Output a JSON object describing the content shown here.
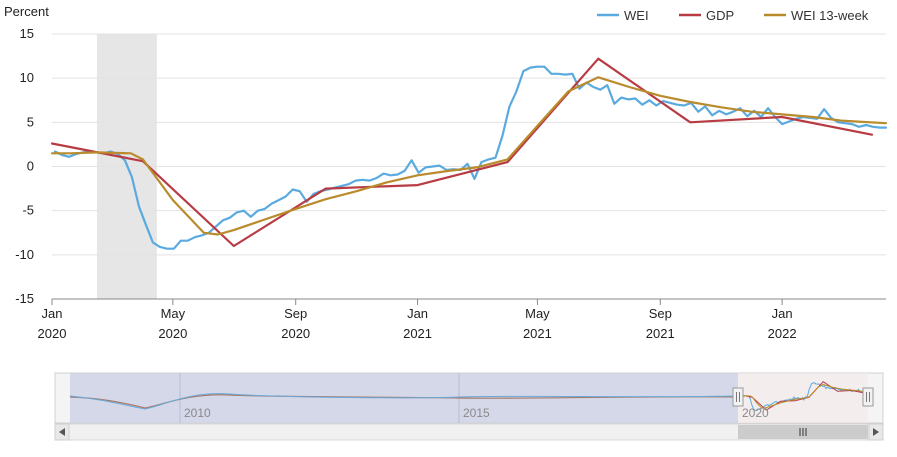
{
  "chart_data": {
    "type": "line",
    "ylabel": "Percent",
    "ylim": [
      -15,
      15
    ],
    "yticks": [
      15,
      10,
      5,
      0,
      -5,
      -10,
      -15
    ],
    "xlim": [
      "2020-01-01",
      "2022-04-15"
    ],
    "xticks": [
      {
        "date": "2020-01-01",
        "month": "Jan",
        "year": "2020"
      },
      {
        "date": "2020-05-01",
        "month": "May",
        "year": "2020"
      },
      {
        "date": "2020-09-01",
        "month": "Sep",
        "year": "2020"
      },
      {
        "date": "2021-01-01",
        "month": "Jan",
        "year": "2021"
      },
      {
        "date": "2021-05-01",
        "month": "May",
        "year": "2021"
      },
      {
        "date": "2021-09-01",
        "month": "Sep",
        "year": "2021"
      },
      {
        "date": "2022-01-01",
        "month": "Jan",
        "year": "2022"
      }
    ],
    "legend_position": "top-right",
    "recession_band": {
      "start": "2020-02-15",
      "end": "2020-04-15"
    },
    "series": [
      {
        "name": "WEI",
        "color": "#5aaae0",
        "points": [
          [
            "2020-01-04",
            1.7
          ],
          [
            "2020-01-11",
            1.3
          ],
          [
            "2020-01-18",
            1.1
          ],
          [
            "2020-01-25",
            1.4
          ],
          [
            "2020-02-01",
            1.6
          ],
          [
            "2020-02-08",
            1.7
          ],
          [
            "2020-02-15",
            1.6
          ],
          [
            "2020-02-22",
            1.5
          ],
          [
            "2020-02-29",
            1.7
          ],
          [
            "2020-03-07",
            1.4
          ],
          [
            "2020-03-14",
            0.7
          ],
          [
            "2020-03-21",
            -1.2
          ],
          [
            "2020-03-28",
            -4.5
          ],
          [
            "2020-04-04",
            -6.6
          ],
          [
            "2020-04-11",
            -8.6
          ],
          [
            "2020-04-18",
            -9.1
          ],
          [
            "2020-04-25",
            -9.3
          ],
          [
            "2020-05-02",
            -9.3
          ],
          [
            "2020-05-09",
            -8.4
          ],
          [
            "2020-05-16",
            -8.4
          ],
          [
            "2020-05-23",
            -8.0
          ],
          [
            "2020-05-30",
            -7.8
          ],
          [
            "2020-06-06",
            -7.5
          ],
          [
            "2020-06-13",
            -6.8
          ],
          [
            "2020-06-20",
            -6.1
          ],
          [
            "2020-06-27",
            -5.8
          ],
          [
            "2020-07-04",
            -5.2
          ],
          [
            "2020-07-11",
            -5.0
          ],
          [
            "2020-07-18",
            -5.7
          ],
          [
            "2020-07-25",
            -5.0
          ],
          [
            "2020-08-01",
            -4.8
          ],
          [
            "2020-08-08",
            -4.2
          ],
          [
            "2020-08-15",
            -3.8
          ],
          [
            "2020-08-22",
            -3.4
          ],
          [
            "2020-08-29",
            -2.6
          ],
          [
            "2020-09-05",
            -2.8
          ],
          [
            "2020-09-12",
            -4.0
          ],
          [
            "2020-09-19",
            -3.1
          ],
          [
            "2020-09-26",
            -2.8
          ],
          [
            "2020-10-03",
            -2.6
          ],
          [
            "2020-10-10",
            -2.4
          ],
          [
            "2020-10-17",
            -2.2
          ],
          [
            "2020-10-24",
            -2.0
          ],
          [
            "2020-10-31",
            -1.6
          ],
          [
            "2020-11-07",
            -1.5
          ],
          [
            "2020-11-14",
            -1.6
          ],
          [
            "2020-11-21",
            -1.3
          ],
          [
            "2020-11-28",
            -0.8
          ],
          [
            "2020-12-05",
            -1.0
          ],
          [
            "2020-12-12",
            -0.9
          ],
          [
            "2020-12-19",
            -0.5
          ],
          [
            "2020-12-26",
            0.7
          ],
          [
            "2021-01-02",
            -0.7
          ],
          [
            "2021-01-09",
            -0.1
          ],
          [
            "2021-01-16",
            0.0
          ],
          [
            "2021-01-23",
            0.1
          ],
          [
            "2021-01-30",
            -0.4
          ],
          [
            "2021-02-06",
            -0.3
          ],
          [
            "2021-02-13",
            -0.4
          ],
          [
            "2021-02-20",
            0.3
          ],
          [
            "2021-02-27",
            -1.4
          ],
          [
            "2021-03-06",
            0.5
          ],
          [
            "2021-03-13",
            0.8
          ],
          [
            "2021-03-20",
            1.0
          ],
          [
            "2021-03-27",
            3.5
          ],
          [
            "2021-04-03",
            6.8
          ],
          [
            "2021-04-10",
            8.5
          ],
          [
            "2021-04-17",
            10.8
          ],
          [
            "2021-04-24",
            11.2
          ],
          [
            "2021-05-01",
            11.3
          ],
          [
            "2021-05-08",
            11.3
          ],
          [
            "2021-05-15",
            10.5
          ],
          [
            "2021-05-22",
            10.5
          ],
          [
            "2021-05-29",
            10.4
          ],
          [
            "2021-06-05",
            10.5
          ],
          [
            "2021-06-12",
            8.8
          ],
          [
            "2021-06-19",
            9.5
          ],
          [
            "2021-06-26",
            9.0
          ],
          [
            "2021-07-03",
            8.7
          ],
          [
            "2021-07-10",
            9.2
          ],
          [
            "2021-07-17",
            7.1
          ],
          [
            "2021-07-24",
            7.8
          ],
          [
            "2021-07-31",
            7.6
          ],
          [
            "2021-08-07",
            7.7
          ],
          [
            "2021-08-14",
            7.0
          ],
          [
            "2021-08-21",
            7.5
          ],
          [
            "2021-08-28",
            6.9
          ],
          [
            "2021-09-04",
            7.4
          ],
          [
            "2021-09-11",
            7.2
          ],
          [
            "2021-09-18",
            7.0
          ],
          [
            "2021-09-25",
            6.9
          ],
          [
            "2021-10-02",
            7.2
          ],
          [
            "2021-10-09",
            6.2
          ],
          [
            "2021-10-16",
            6.8
          ],
          [
            "2021-10-23",
            5.8
          ],
          [
            "2021-10-30",
            6.3
          ],
          [
            "2021-11-06",
            5.9
          ],
          [
            "2021-11-13",
            6.2
          ],
          [
            "2021-11-20",
            6.6
          ],
          [
            "2021-11-27",
            5.7
          ],
          [
            "2021-12-04",
            6.3
          ],
          [
            "2021-12-11",
            5.6
          ],
          [
            "2021-12-18",
            6.6
          ],
          [
            "2021-12-25",
            5.6
          ],
          [
            "2022-01-01",
            4.8
          ],
          [
            "2022-01-08",
            5.1
          ],
          [
            "2022-01-15",
            5.4
          ],
          [
            "2022-01-22",
            5.6
          ],
          [
            "2022-01-29",
            5.5
          ],
          [
            "2022-02-05",
            5.4
          ],
          [
            "2022-02-12",
            6.5
          ],
          [
            "2022-02-19",
            5.5
          ],
          [
            "2022-02-26",
            5.0
          ],
          [
            "2022-03-05",
            4.9
          ],
          [
            "2022-03-12",
            4.8
          ],
          [
            "2022-03-19",
            4.5
          ],
          [
            "2022-03-26",
            4.7
          ],
          [
            "2022-04-02",
            4.5
          ],
          [
            "2022-04-09",
            4.4
          ],
          [
            "2022-04-15",
            4.4
          ]
        ]
      },
      {
        "name": "GDP",
        "color": "#b83b43",
        "points": [
          [
            "2020-01-01",
            2.6
          ],
          [
            "2020-04-01",
            0.6
          ],
          [
            "2020-07-01",
            -9.0
          ],
          [
            "2020-10-01",
            -2.5
          ],
          [
            "2021-01-01",
            -2.1
          ],
          [
            "2021-04-01",
            0.5
          ],
          [
            "2021-07-01",
            12.2
          ],
          [
            "2021-10-01",
            5.0
          ],
          [
            "2022-01-01",
            5.6
          ],
          [
            "2022-04-01",
            3.6
          ]
        ]
      },
      {
        "name": "WEI 13-week",
        "color": "#b98b2c",
        "points": [
          [
            "2020-01-01",
            1.5
          ],
          [
            "2020-01-20",
            1.5
          ],
          [
            "2020-02-15",
            1.6
          ],
          [
            "2020-03-20",
            1.5
          ],
          [
            "2020-04-01",
            0.8
          ],
          [
            "2020-05-01",
            -3.8
          ],
          [
            "2020-06-01",
            -7.5
          ],
          [
            "2020-06-15",
            -7.7
          ],
          [
            "2020-07-01",
            -7.2
          ],
          [
            "2020-08-01",
            -6.0
          ],
          [
            "2020-09-01",
            -4.8
          ],
          [
            "2020-10-01",
            -3.7
          ],
          [
            "2020-11-01",
            -2.8
          ],
          [
            "2020-12-01",
            -1.8
          ],
          [
            "2021-01-01",
            -1.0
          ],
          [
            "2021-02-01",
            -0.5
          ],
          [
            "2021-03-01",
            -0.1
          ],
          [
            "2021-04-01",
            0.8
          ],
          [
            "2021-05-01",
            4.6
          ],
          [
            "2021-06-01",
            8.5
          ],
          [
            "2021-07-01",
            10.1
          ],
          [
            "2021-08-01",
            9.0
          ],
          [
            "2021-09-01",
            8.0
          ],
          [
            "2021-10-01",
            7.3
          ],
          [
            "2021-11-01",
            6.7
          ],
          [
            "2021-12-01",
            6.2
          ],
          [
            "2022-01-01",
            5.9
          ],
          [
            "2022-02-01",
            5.6
          ],
          [
            "2022-03-01",
            5.2
          ],
          [
            "2022-04-15",
            4.9
          ]
        ]
      }
    ],
    "navigator": {
      "tick_labels": [
        "2010",
        "2015",
        "2020"
      ]
    }
  }
}
